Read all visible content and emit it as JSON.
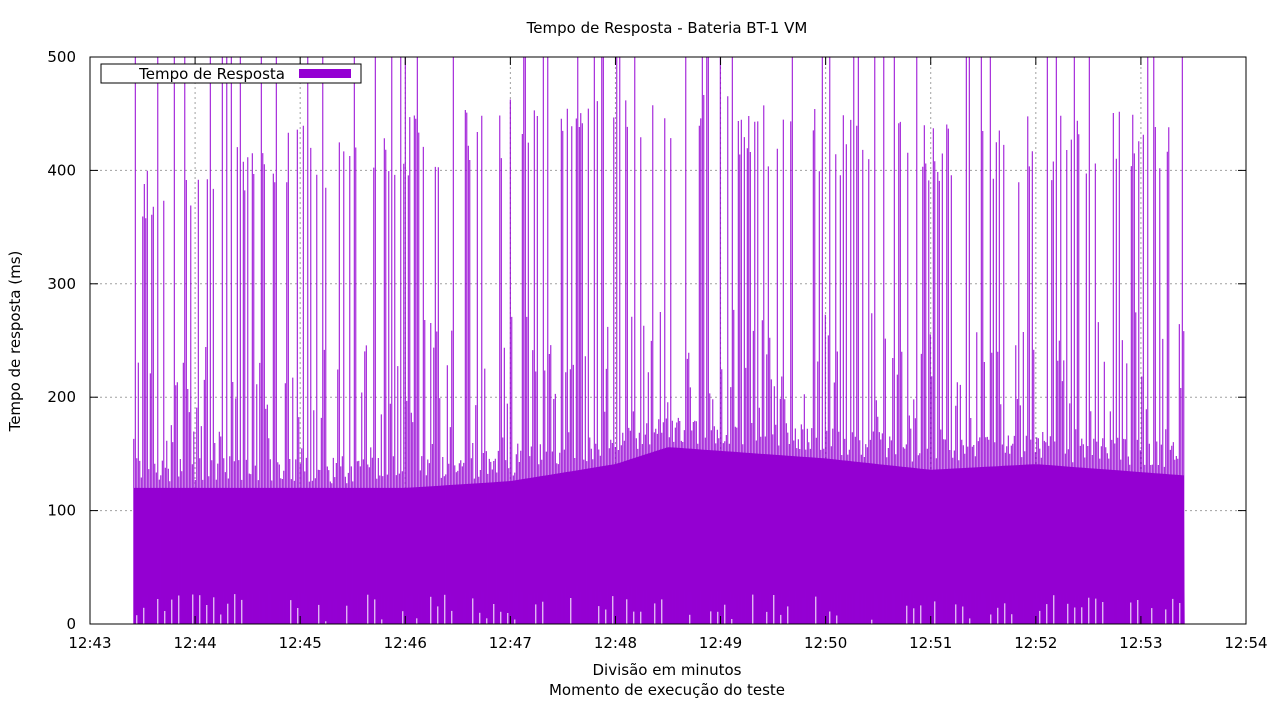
{
  "chart_data": {
    "type": "bar",
    "title": "Tempo de Resposta - Bateria BT-1 VM",
    "xlabel": "Divisão em minutos",
    "xlabel2": "Momento de execução do teste",
    "ylabel": "Tempo de resposta (ms)",
    "ylim": [
      0,
      500
    ],
    "yticks": [
      "0",
      "100",
      "200",
      "300",
      "400",
      "500"
    ],
    "xticks": [
      "12:43",
      "12:44",
      "12:45",
      "12:46",
      "12:47",
      "12:48",
      "12:49",
      "12:50",
      "12:51",
      "12:52",
      "12:53",
      "12:54"
    ],
    "grid": true,
    "legend_position": "top-left",
    "color": "#9400d3",
    "series": [
      {
        "name": "Tempo de Resposta",
        "time_start": "12:43:25",
        "time_end": "12:53:25",
        "band_low_ms": 28,
        "band_high_ms": 124,
        "envelope": [
          {
            "time": "12:43:25",
            "high_ms": 124,
            "low_ms": 28
          },
          {
            "time": "12:46:00",
            "high_ms": 124,
            "low_ms": 30
          },
          {
            "time": "12:47:00",
            "high_ms": 130,
            "low_ms": 30
          },
          {
            "time": "12:48:00",
            "high_ms": 145,
            "low_ms": 35
          },
          {
            "time": "12:48:30",
            "high_ms": 160,
            "low_ms": 30
          },
          {
            "time": "12:50:00",
            "high_ms": 150,
            "low_ms": 30
          },
          {
            "time": "12:51:00",
            "high_ms": 140,
            "low_ms": 30
          },
          {
            "time": "12:52:00",
            "high_ms": 145,
            "low_ms": 28
          },
          {
            "time": "12:53:25",
            "high_ms": 135,
            "low_ms": 25
          }
        ],
        "typical_spike_ms": [
          {
            "time": "12:43:30",
            "value_ms": 410
          },
          {
            "time": "12:44:00",
            "value_ms": 410
          },
          {
            "time": "12:45:00",
            "value_ms": 440
          },
          {
            "time": "12:46:00",
            "value_ms": 450
          },
          {
            "time": "12:47:00",
            "value_ms": 470
          },
          {
            "time": "12:48:00",
            "value_ms": 480
          },
          {
            "time": "12:49:00",
            "value_ms": 470
          },
          {
            "time": "12:50:00",
            "value_ms": 455
          },
          {
            "time": "12:51:00",
            "value_ms": 440
          },
          {
            "time": "12:52:00",
            "value_ms": 450
          },
          {
            "time": "12:53:25",
            "value_ms": 460
          }
        ],
        "max_ms": 500
      }
    ]
  }
}
